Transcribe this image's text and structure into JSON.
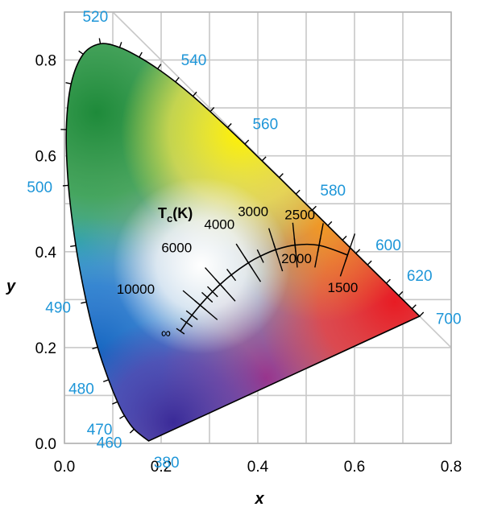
{
  "chart_data": {
    "type": "scatter",
    "title": "",
    "xlabel": "x",
    "ylabel": "y",
    "xlim": [
      0.0,
      0.8
    ],
    "ylim": [
      0.0,
      0.9
    ],
    "grid": true,
    "x_ticks": [
      "0.0",
      "0.2",
      "0.4",
      "0.6",
      "0.8"
    ],
    "y_ticks": [
      "0.0",
      "0.2",
      "0.4",
      "0.6",
      "0.8"
    ],
    "colors": {
      "wavelength_labels": "#1e96d8",
      "grid": "#c8c8c8",
      "outline": "#000000"
    },
    "spectral_locus": [
      {
        "nm": 380,
        "x": 0.1741,
        "y": 0.005
      },
      {
        "nm": 460,
        "x": 0.144,
        "y": 0.0297
      },
      {
        "nm": 470,
        "x": 0.1241,
        "y": 0.0578
      },
      {
        "nm": 475,
        "x": 0.1096,
        "y": 0.0868
      },
      {
        "nm": 480,
        "x": 0.0913,
        "y": 0.1327
      },
      {
        "nm": 485,
        "x": 0.0687,
        "y": 0.2007
      },
      {
        "nm": 490,
        "x": 0.0454,
        "y": 0.295
      },
      {
        "nm": 495,
        "x": 0.0235,
        "y": 0.4127
      },
      {
        "nm": 500,
        "x": 0.0082,
        "y": 0.5384
      },
      {
        "nm": 505,
        "x": 0.0039,
        "y": 0.6548
      },
      {
        "nm": 510,
        "x": 0.0139,
        "y": 0.7502
      },
      {
        "nm": 515,
        "x": 0.0389,
        "y": 0.812
      },
      {
        "nm": 520,
        "x": 0.0743,
        "y": 0.8338
      },
      {
        "nm": 525,
        "x": 0.1142,
        "y": 0.8262
      },
      {
        "nm": 530,
        "x": 0.1547,
        "y": 0.8059
      },
      {
        "nm": 535,
        "x": 0.1929,
        "y": 0.7816
      },
      {
        "nm": 540,
        "x": 0.2296,
        "y": 0.7543
      },
      {
        "nm": 545,
        "x": 0.2658,
        "y": 0.7243
      },
      {
        "nm": 550,
        "x": 0.3016,
        "y": 0.6923
      },
      {
        "nm": 555,
        "x": 0.3373,
        "y": 0.6589
      },
      {
        "nm": 560,
        "x": 0.3731,
        "y": 0.6245
      },
      {
        "nm": 565,
        "x": 0.4087,
        "y": 0.5896
      },
      {
        "nm": 570,
        "x": 0.4441,
        "y": 0.5547
      },
      {
        "nm": 575,
        "x": 0.4788,
        "y": 0.5202
      },
      {
        "nm": 580,
        "x": 0.5125,
        "y": 0.4866
      },
      {
        "nm": 585,
        "x": 0.5448,
        "y": 0.4544
      },
      {
        "nm": 590,
        "x": 0.5752,
        "y": 0.4242
      },
      {
        "nm": 595,
        "x": 0.6029,
        "y": 0.3965
      },
      {
        "nm": 600,
        "x": 0.627,
        "y": 0.3725
      },
      {
        "nm": 610,
        "x": 0.6658,
        "y": 0.334
      },
      {
        "nm": 620,
        "x": 0.6915,
        "y": 0.3083
      },
      {
        "nm": 640,
        "x": 0.719,
        "y": 0.2809
      },
      {
        "nm": 700,
        "x": 0.7347,
        "y": 0.2653
      }
    ],
    "wavelength_labels": [
      {
        "text": "380",
        "nm": 380
      },
      {
        "text": "460",
        "nm": 460
      },
      {
        "text": "470",
        "nm": 470
      },
      {
        "text": "480",
        "nm": 480
      },
      {
        "text": "490",
        "nm": 490
      },
      {
        "text": "500",
        "nm": 500
      },
      {
        "text": "520",
        "nm": 520
      },
      {
        "text": "540",
        "nm": 540
      },
      {
        "text": "560",
        "nm": 560
      },
      {
        "text": "580",
        "nm": 580
      },
      {
        "text": "600",
        "nm": 600
      },
      {
        "text": "620",
        "nm": 620
      },
      {
        "text": "700",
        "nm": 700
      }
    ],
    "planckian_locus": {
      "title": "T",
      "title_sub": "c",
      "title_suffix": "(K)",
      "infinity_label": "∞",
      "points": [
        {
          "T": 1500,
          "x": 0.5857,
          "y": 0.3931
        },
        {
          "T": 2000,
          "x": 0.5267,
          "y": 0.4133
        },
        {
          "T": 2500,
          "x": 0.477,
          "y": 0.4137
        },
        {
          "T": 3000,
          "x": 0.4369,
          "y": 0.4041
        },
        {
          "T": 3500,
          "x": 0.4053,
          "y": 0.3907
        },
        {
          "T": 4000,
          "x": 0.3805,
          "y": 0.3768
        },
        {
          "T": 5000,
          "x": 0.3451,
          "y": 0.3516
        },
        {
          "T": 6000,
          "x": 0.3221,
          "y": 0.3318
        },
        {
          "T": 7000,
          "x": 0.3064,
          "y": 0.3166
        },
        {
          "T": 8000,
          "x": 0.2952,
          "y": 0.3048
        },
        {
          "T": 10000,
          "x": 0.2807,
          "y": 0.2884
        },
        {
          "T": 15000,
          "x": 0.2637,
          "y": 0.2674
        },
        {
          "T": 25000,
          "x": 0.2524,
          "y": 0.2523
        },
        {
          "T": "infinity",
          "x": 0.2399,
          "y": 0.2341
        }
      ],
      "labels": [
        {
          "text": "1500",
          "T": 1500
        },
        {
          "text": "2000",
          "T": 2000
        },
        {
          "text": "2500",
          "T": 2500
        },
        {
          "text": "3000",
          "T": 3000
        },
        {
          "text": "4000",
          "T": 4000
        },
        {
          "text": "6000",
          "T": 6000
        },
        {
          "text": "10000",
          "T": 10000
        }
      ]
    }
  }
}
